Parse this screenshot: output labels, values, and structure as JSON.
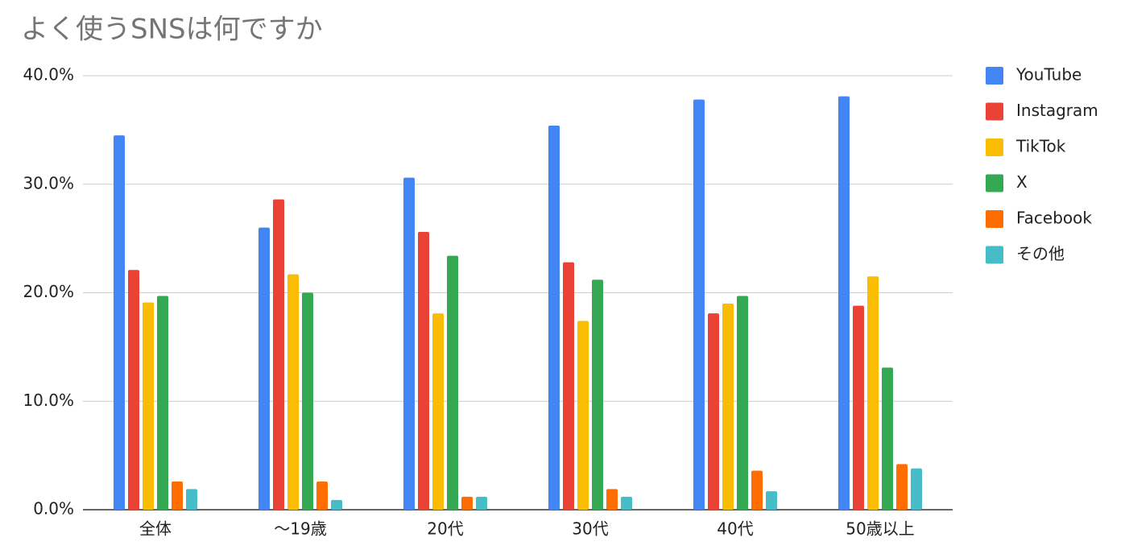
{
  "chart_data": {
    "type": "bar",
    "title": "よく使うSNSは何ですか",
    "categories": [
      "全体",
      "〜19歳",
      "20代",
      "30代",
      "40代",
      "50歳以上"
    ],
    "series": [
      {
        "name": "YouTube",
        "color": "#4285f4",
        "values": [
          34.5,
          26.0,
          30.6,
          35.4,
          37.8,
          38.1
        ]
      },
      {
        "name": "Instagram",
        "color": "#ea4335",
        "values": [
          22.1,
          28.6,
          25.6,
          22.8,
          18.1,
          18.8
        ]
      },
      {
        "name": "TikTok",
        "color": "#fbbc04",
        "values": [
          19.1,
          21.7,
          18.1,
          17.4,
          19.0,
          21.5
        ]
      },
      {
        "name": "X",
        "color": "#34a853",
        "values": [
          19.7,
          20.0,
          23.4,
          21.2,
          19.7,
          13.1
        ]
      },
      {
        "name": "Facebook",
        "color": "#ff6d01",
        "values": [
          2.6,
          2.6,
          1.2,
          1.9,
          3.6,
          4.2
        ]
      },
      {
        "name": "その他",
        "color": "#46bdc6",
        "values": [
          1.9,
          0.9,
          1.2,
          1.2,
          1.7,
          3.8
        ]
      }
    ],
    "ylim": [
      0,
      40
    ],
    "yticks": [
      {
        "value": 0,
        "label": "0.0%"
      },
      {
        "value": 10,
        "label": "10.0%"
      },
      {
        "value": 20,
        "label": "20.0%"
      },
      {
        "value": 30,
        "label": "30.0%"
      },
      {
        "value": 40,
        "label": "40.0%"
      }
    ],
    "grid": true,
    "legend": "right"
  }
}
